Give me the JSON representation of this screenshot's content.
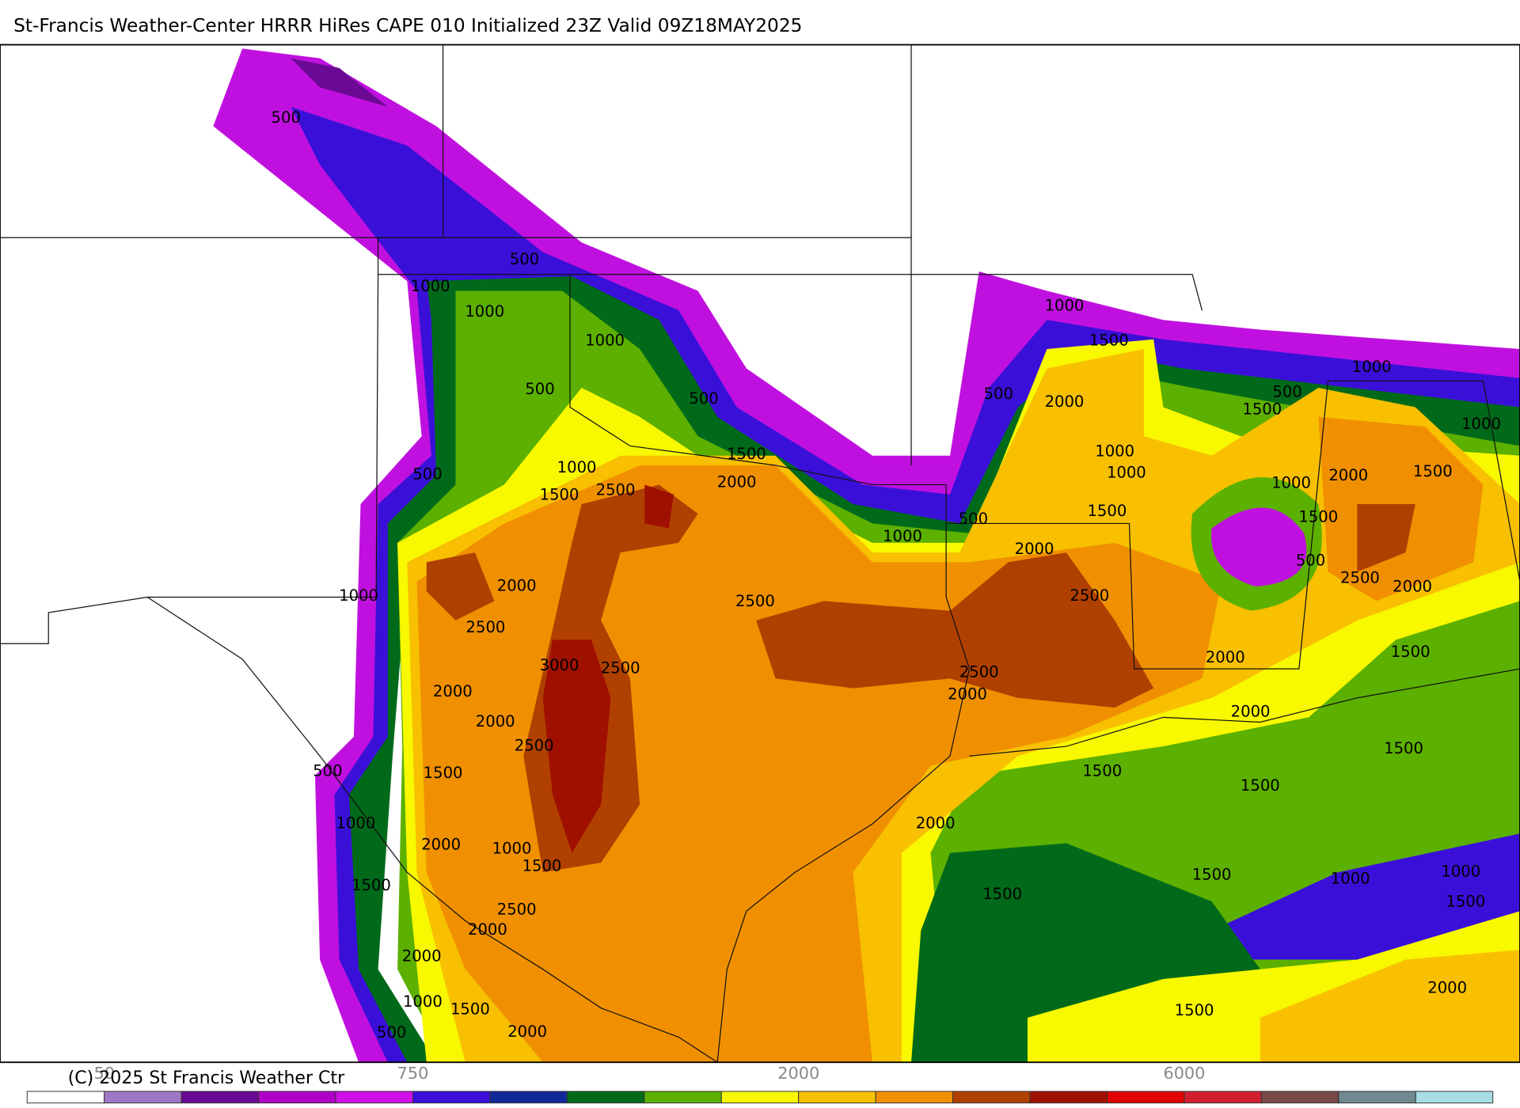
{
  "title": "St-Francis Weather-Center HRRR HiRes CAPE  010 Initialized  23Z Valid 09Z18MAY2025",
  "copyright": "(C) 2025 St Francis Weather Ctr",
  "colorbar": {
    "colors": [
      "#ffffff",
      "#9e78c4",
      "#6a0a94",
      "#b000c8",
      "#d010e8",
      "#3a10d8",
      "#10289a",
      "#006a1a",
      "#5cb000",
      "#f8f800",
      "#f8c000",
      "#f09000",
      "#b04000",
      "#a01000",
      "#e00000",
      "#d02030",
      "#7a4848",
      "#708890",
      "#a8dce4"
    ],
    "ticks": [
      50,
      750,
      2000,
      6000
    ]
  },
  "contour_labels": [
    500,
    500,
    1000,
    1000,
    1000,
    500,
    500,
    1000,
    1500,
    500,
    2000,
    500,
    1000,
    1500,
    1000,
    1500,
    2000,
    1000,
    1500,
    2500,
    500,
    1000,
    1000,
    1500,
    1000,
    2000,
    1500,
    1500,
    500,
    1000,
    2000,
    500,
    2500,
    2000,
    1000,
    2000,
    2500,
    2500,
    2500,
    2000,
    1500,
    3000,
    2500,
    2500,
    2000,
    2000,
    2000,
    2000,
    2500,
    1500,
    500,
    1500,
    1500,
    1500,
    1000,
    2000,
    2000,
    1000,
    1500,
    1500,
    1000,
    1000,
    1500,
    1500,
    1500,
    2500,
    2000,
    2000,
    2000,
    1000,
    1500,
    1500,
    500,
    2000
  ]
}
